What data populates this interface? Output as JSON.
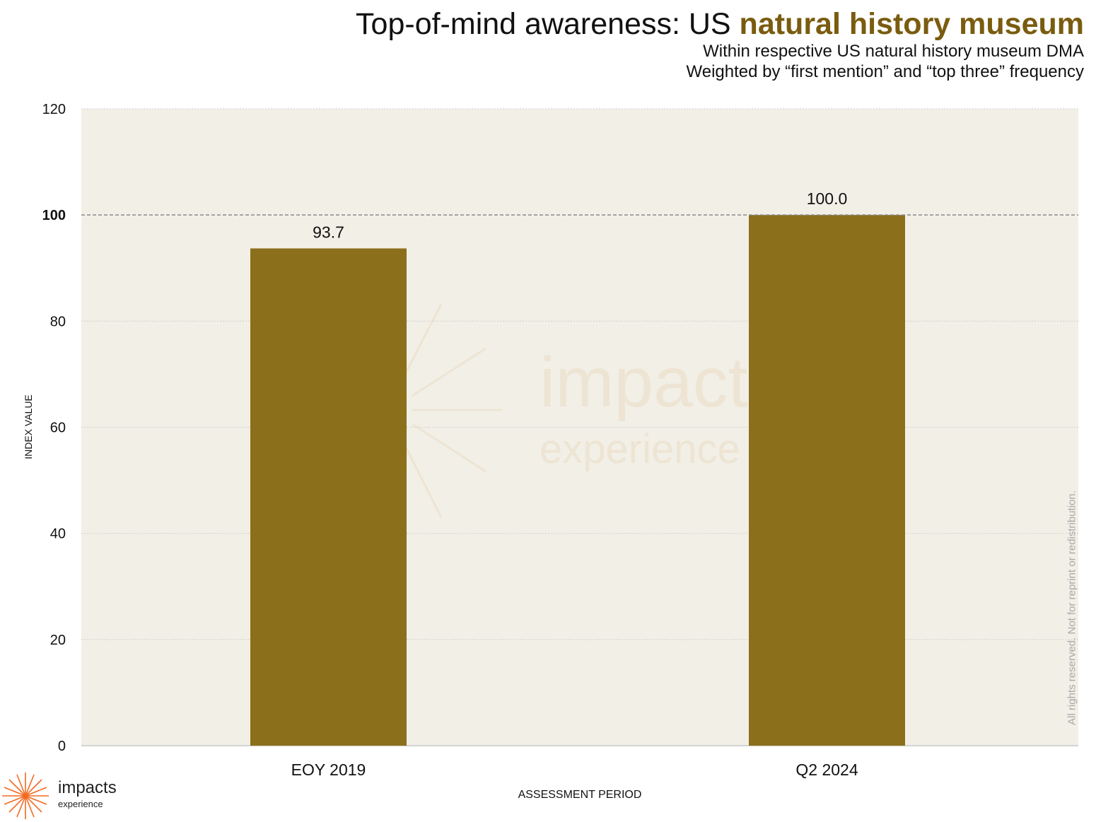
{
  "header": {
    "title_prefix": "Top-of-mind awareness: US ",
    "title_highlight": "natural history museum",
    "subtitle_line1": "Within respective US natural history museum DMA",
    "subtitle_line2": "Weighted by “first mention” and “top three” frequency"
  },
  "notice": "All rights reserved. Not for reprint or redistribution.",
  "logo": {
    "line1": "impacts",
    "line2": "experience",
    "icon": "sunburst-icon"
  },
  "watermark": {
    "line1": "impacts",
    "line2": "experience"
  },
  "colors": {
    "bar": "#8b6f1a",
    "highlight": "#7a5c10",
    "plot_background": "#f2efe7",
    "logo_orange": "#f26b21"
  },
  "chart_data": {
    "type": "bar",
    "categories": [
      "EOY 2019",
      "Q2 2024"
    ],
    "values": [
      93.7,
      100.0
    ],
    "value_labels": [
      "93.7",
      "100.0"
    ],
    "xlabel": "ASSESSMENT PERIOD",
    "ylabel": "INDEX VALUE",
    "ylim": [
      0,
      120
    ],
    "yticks": [
      0,
      20,
      40,
      60,
      80,
      100,
      120
    ],
    "reference_line": 100,
    "grid": true,
    "legend": "none"
  }
}
